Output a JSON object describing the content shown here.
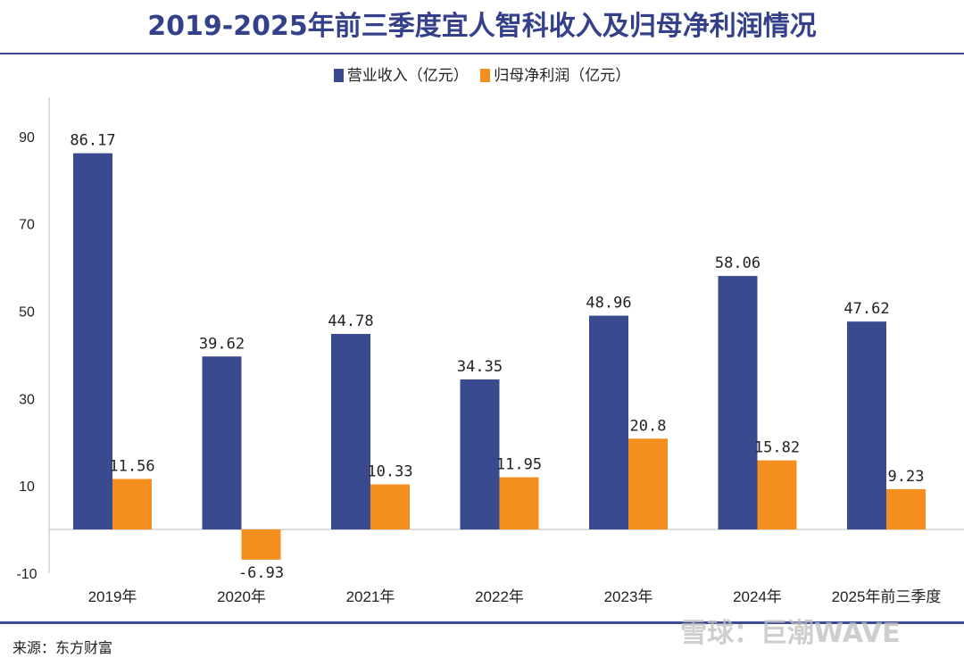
{
  "chart_data": {
    "type": "bar",
    "title": "2019-2025年前三季度宜人智科收入及归母净利润情况",
    "categories": [
      "2019年",
      "2020年",
      "2021年",
      "2022年",
      "2023年",
      "2024年",
      "2025年前三季度"
    ],
    "series": [
      {
        "name": "营业收入（亿元）",
        "color": "#394a8f",
        "values": [
          86.17,
          39.62,
          44.78,
          34.35,
          48.96,
          58.06,
          47.62
        ],
        "labels": [
          "86.17",
          "39.62",
          "44.78",
          "34.35",
          "48.96",
          "58.06",
          "47.62"
        ]
      },
      {
        "name": "归母净利润（亿元）",
        "color": "#f48f1f",
        "values": [
          11.56,
          -6.93,
          10.33,
          11.95,
          20.8,
          15.82,
          9.23
        ],
        "labels": [
          "11.56",
          "-6.93",
          "10.33",
          "11.95",
          "20.8",
          "15.82",
          "9.23"
        ]
      }
    ],
    "yticks": [
      90,
      70,
      50,
      30,
      10,
      -10
    ],
    "ylim": [
      -10,
      99
    ],
    "xlabel": "",
    "ylabel": "",
    "legend": "top-center",
    "grid": false
  },
  "footer": {
    "source": "来源：东方财富",
    "watermark": "雪球：巨潮WAVE"
  }
}
